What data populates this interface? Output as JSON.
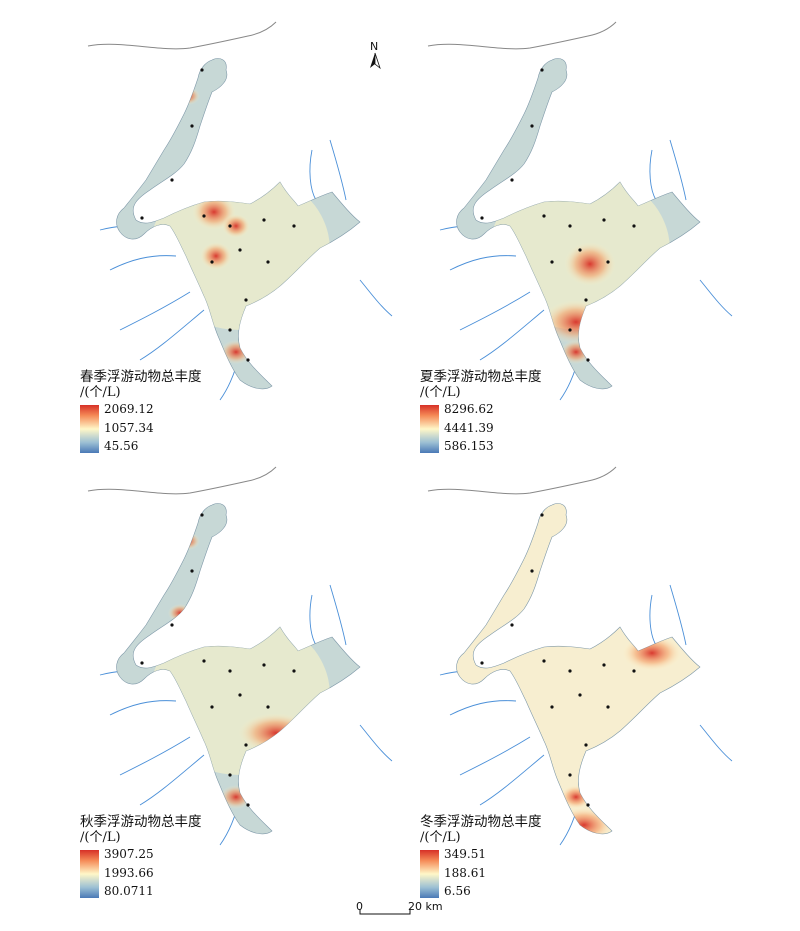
{
  "north_arrow": {
    "label": "N"
  },
  "scale_bar": {
    "start": "0",
    "end": "20 km"
  },
  "ramp_colors": {
    "high": "#d73027",
    "mid": "#fff7c8",
    "low": "#4a79b6"
  },
  "panels": [
    {
      "id": "spring",
      "title": "春季浮游动物总丰度",
      "unit": "/(个/L)",
      "max": "2069.12",
      "mid": "1057.34",
      "min": "45.56",
      "hotspots": [
        "north-bay",
        "central-west",
        "central-east",
        "south-central",
        "south-inlet"
      ]
    },
    {
      "id": "summer",
      "title": "夏季浮游动物总丰度",
      "unit": "/(个/L)",
      "max": "8296.62",
      "mid": "4441.39",
      "min": "586.153",
      "hotspots": [
        "central-south",
        "south-basin",
        "south-inlet"
      ]
    },
    {
      "id": "autumn",
      "title": "秋季浮游动物总丰度",
      "unit": "/(个/L)",
      "max": "3907.25",
      "mid": "1993.66",
      "min": "80.0711",
      "hotspots": [
        "north-bay",
        "west-bay",
        "south-east-basin",
        "south-inlet"
      ]
    },
    {
      "id": "winter",
      "title": "冬季浮游动物总丰度",
      "unit": "/(个/L)",
      "max": "349.51",
      "mid": "188.61",
      "min": "6.56",
      "hotspots": [
        "east-arm",
        "south-lake",
        "south-inlet"
      ]
    }
  ]
}
